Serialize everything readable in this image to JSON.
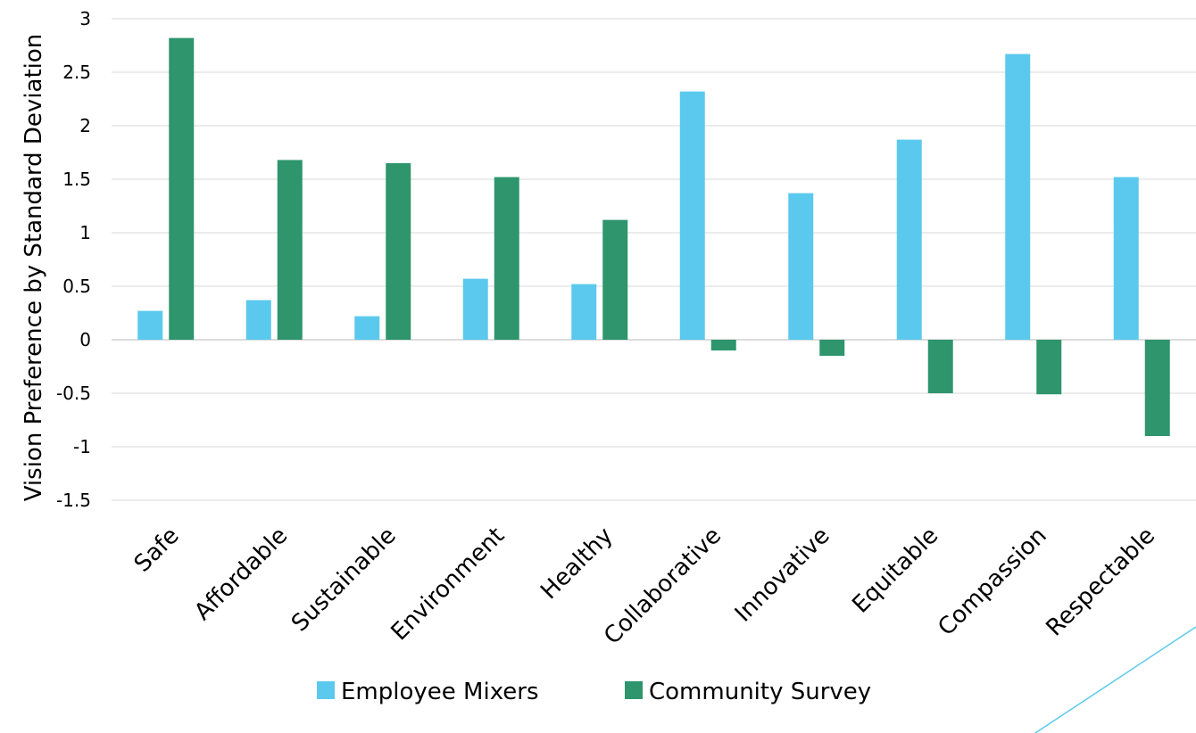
{
  "chart_data": {
    "type": "bar",
    "title": "",
    "ylabel": "Vision Preference by Standard Deviation",
    "xlabel": "",
    "ylim": [
      -1.5,
      3
    ],
    "yticks": [
      3,
      2.5,
      2,
      1.5,
      1,
      0.5,
      0,
      -0.5,
      -1,
      -1.5
    ],
    "ytick_labels": [
      "3",
      "2.5",
      "2",
      "1.5",
      "1",
      "0.5",
      "0",
      "-0.5",
      "-1",
      "-1.5"
    ],
    "grid": true,
    "legend_position": "bottom",
    "categories": [
      "Safe",
      "Affordable",
      "Sustainable",
      "Environment",
      "Healthy",
      "Collaborative",
      "Innovative",
      "Equitable",
      "Compassion",
      "Respectable"
    ],
    "series": [
      {
        "name": "Employee Mixers",
        "color": "#5BC9EE",
        "values": [
          0.27,
          0.37,
          0.22,
          0.57,
          0.52,
          2.32,
          1.37,
          1.87,
          2.67,
          1.52
        ]
      },
      {
        "name": "Community Survey",
        "color": "#2E956D",
        "values": [
          2.82,
          1.68,
          1.65,
          1.52,
          1.12,
          -0.1,
          -0.15,
          -0.5,
          -0.51,
          -0.9
        ]
      }
    ]
  },
  "decoration": {
    "accent_line_color": "#5BC9EE"
  }
}
